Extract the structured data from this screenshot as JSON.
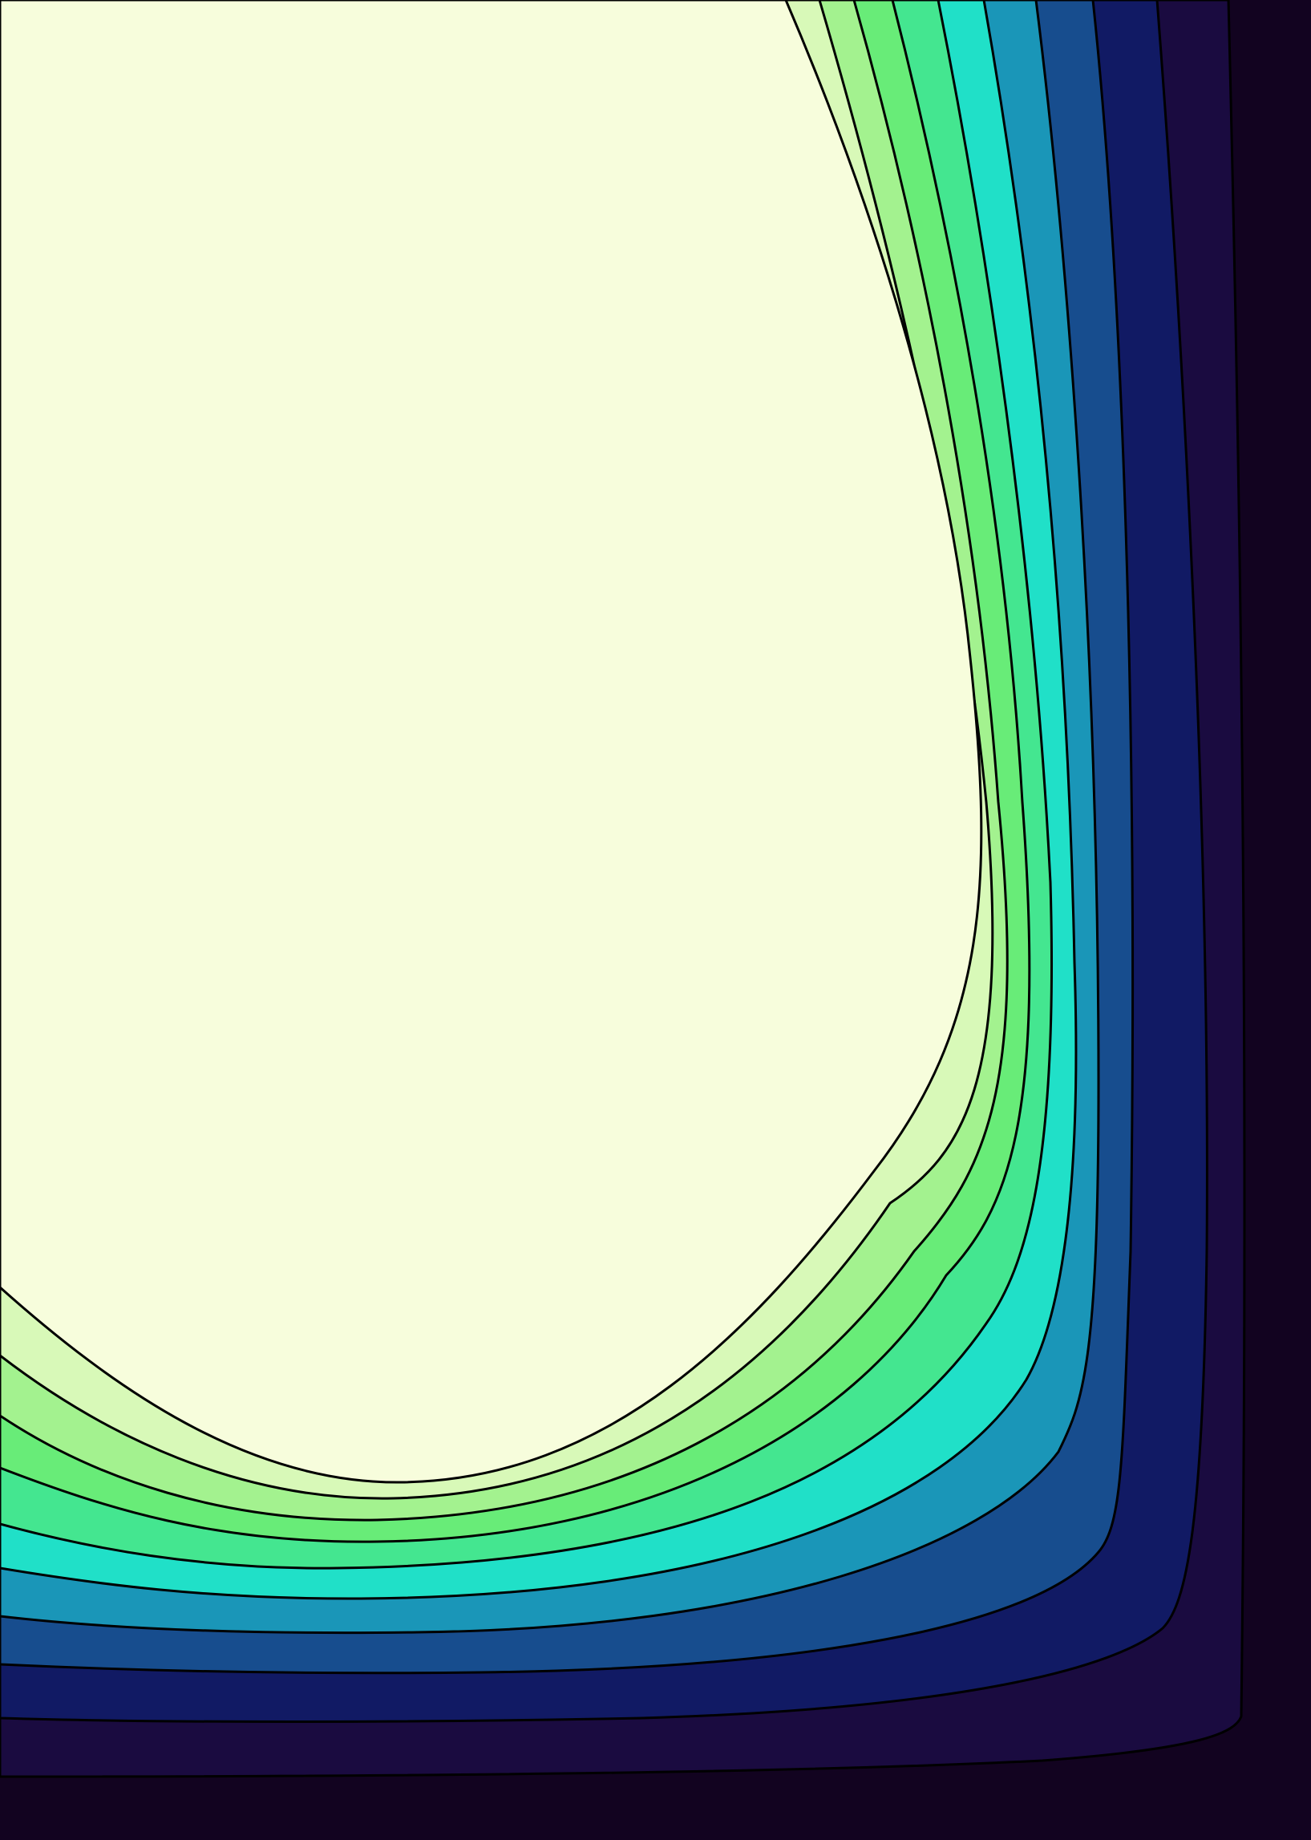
{
  "artwork": {
    "background_color": "#120320",
    "outline_color": "#000000",
    "bands": [
      {
        "name": "band-1",
        "color": "#1a0b40"
      },
      {
        "name": "band-2",
        "color": "#111a64"
      },
      {
        "name": "band-3",
        "color": "#174d8e"
      },
      {
        "name": "band-4",
        "color": "#1a96b8"
      },
      {
        "name": "band-5",
        "color": "#20e0c8"
      },
      {
        "name": "band-6",
        "color": "#44e690"
      },
      {
        "name": "band-7",
        "color": "#68ec78"
      },
      {
        "name": "band-8",
        "color": "#a3f28f"
      },
      {
        "name": "band-9",
        "color": "#d8f9b8"
      },
      {
        "name": "core",
        "color": "#f7fddc"
      }
    ]
  }
}
